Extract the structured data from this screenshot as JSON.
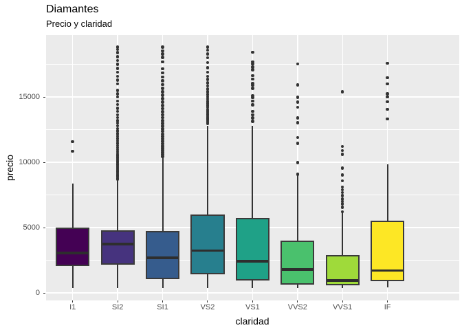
{
  "chart_data": {
    "type": "boxplot",
    "title": "Diamantes",
    "subtitle": "Precio y claridad",
    "xlabel": "claridad",
    "ylabel": "precio",
    "categories": [
      "I1",
      "SI2",
      "SI1",
      "VS2",
      "VS1",
      "VVS2",
      "VVS1",
      "IF"
    ],
    "y_ticks": [
      0,
      5000,
      10000,
      15000
    ],
    "y_tick_labels": [
      "0",
      "5000",
      "10000",
      "15000"
    ],
    "y_minor_gridlines": [
      2500,
      7500,
      12500,
      17500
    ],
    "ylim": [
      -600,
      19750
    ],
    "grid": true,
    "legend": "none",
    "style": {
      "panel_bg": "#EBEBEB",
      "grid_color": "#FFFFFF",
      "box_border": "#3A3A3A",
      "median_color": "#2E2E2E",
      "whisker_color": "#333333",
      "outlier_color": "#333333",
      "tick_label_color": "#4D4D4D",
      "text_color": "#000000"
    },
    "series": [
      {
        "category": "I1",
        "fill": "#440154",
        "whisker_low": 370,
        "q1": 2070,
        "median": 3060,
        "q3": 5000,
        "whisker_high": 8390,
        "outliers": [
          10850,
          11590
        ]
      },
      {
        "category": "SI2",
        "fill": "#46337E",
        "whisker_low": 350,
        "q1": 2160,
        "median": 3740,
        "q3": 4790,
        "whisker_high": 8650,
        "outliers": [
          8720,
          8800,
          8890,
          8980,
          9070,
          9160,
          9260,
          9360,
          9470,
          9580,
          9700,
          9820,
          9950,
          10080,
          10220,
          10360,
          10500,
          10650,
          10800,
          10950,
          11100,
          11280,
          11460,
          11640,
          11820,
          12000,
          12200,
          12400,
          12600,
          12800,
          13000,
          13200,
          13420,
          13650,
          13900,
          14150,
          14420,
          14700,
          15000,
          15250,
          15500,
          16000,
          16300,
          16600,
          16900,
          17200,
          17500,
          17800,
          18100,
          18400,
          18650,
          18820
        ]
      },
      {
        "category": "SI1",
        "fill": "#365C8D",
        "whisker_low": 350,
        "q1": 1050,
        "median": 2690,
        "q3": 4740,
        "whisker_high": 10390,
        "outliers": [
          10450,
          10600,
          10760,
          10920,
          11080,
          11250,
          11420,
          11600,
          11790,
          11980,
          12170,
          12370,
          12570,
          12780,
          12990,
          13200,
          13420,
          13650,
          13880,
          14120,
          14360,
          14610,
          14870,
          15130,
          15400,
          15680,
          15960,
          16250,
          16550,
          16860,
          17180,
          17700,
          18050,
          18300,
          18550,
          18820
        ]
      },
      {
        "category": "VS2",
        "fill": "#277F8E",
        "whisker_low": 360,
        "q1": 1410,
        "median": 3230,
        "q3": 6000,
        "whisker_high": 12800,
        "outliers": [
          12950,
          13060,
          13170,
          13290,
          13410,
          13530,
          13660,
          13790,
          13930,
          14070,
          14210,
          14360,
          14520,
          14680,
          14850,
          15020,
          15200,
          15400,
          15620,
          15850,
          16090,
          16340,
          16600,
          16900,
          17250,
          17650,
          18000,
          18300,
          18600,
          18820
        ]
      },
      {
        "category": "VS1",
        "fill": "#1FA187",
        "whisker_low": 360,
        "q1": 930,
        "median": 2430,
        "q3": 5750,
        "whisker_high": 12790,
        "outliers": [
          13130,
          13400,
          13650,
          13900,
          14400,
          14700,
          14950,
          15100,
          15680,
          15900,
          16030,
          16380,
          16650,
          17100,
          17300,
          17550,
          17700,
          18440
        ]
      },
      {
        "category": "VVS2",
        "fill": "#4AC16D",
        "whisker_low": 370,
        "q1": 620,
        "median": 1780,
        "q3": 4010,
        "whisker_high": 9000,
        "outliers": [
          9090,
          9970,
          11460,
          11900,
          13040,
          13400,
          14220,
          14620,
          14980,
          15940,
          17530
        ]
      },
      {
        "category": "VVS1",
        "fill": "#9FDA3A",
        "whisker_low": 380,
        "q1": 580,
        "median": 950,
        "q3": 2900,
        "whisker_high": 6280,
        "outliers": [
          6210,
          6560,
          6820,
          7000,
          7200,
          7440,
          7700,
          7900,
          8100,
          8580,
          9020,
          9550,
          10600,
          10900,
          11220,
          15400
        ]
      },
      {
        "category": "IF",
        "fill": "#FDE725",
        "whisker_low": 430,
        "q1": 880,
        "median": 1720,
        "q3": 5550,
        "whisker_high": 9860,
        "outliers": [
          13330,
          14060,
          14640,
          15000,
          15260,
          16000,
          16490,
          17600
        ]
      }
    ]
  }
}
